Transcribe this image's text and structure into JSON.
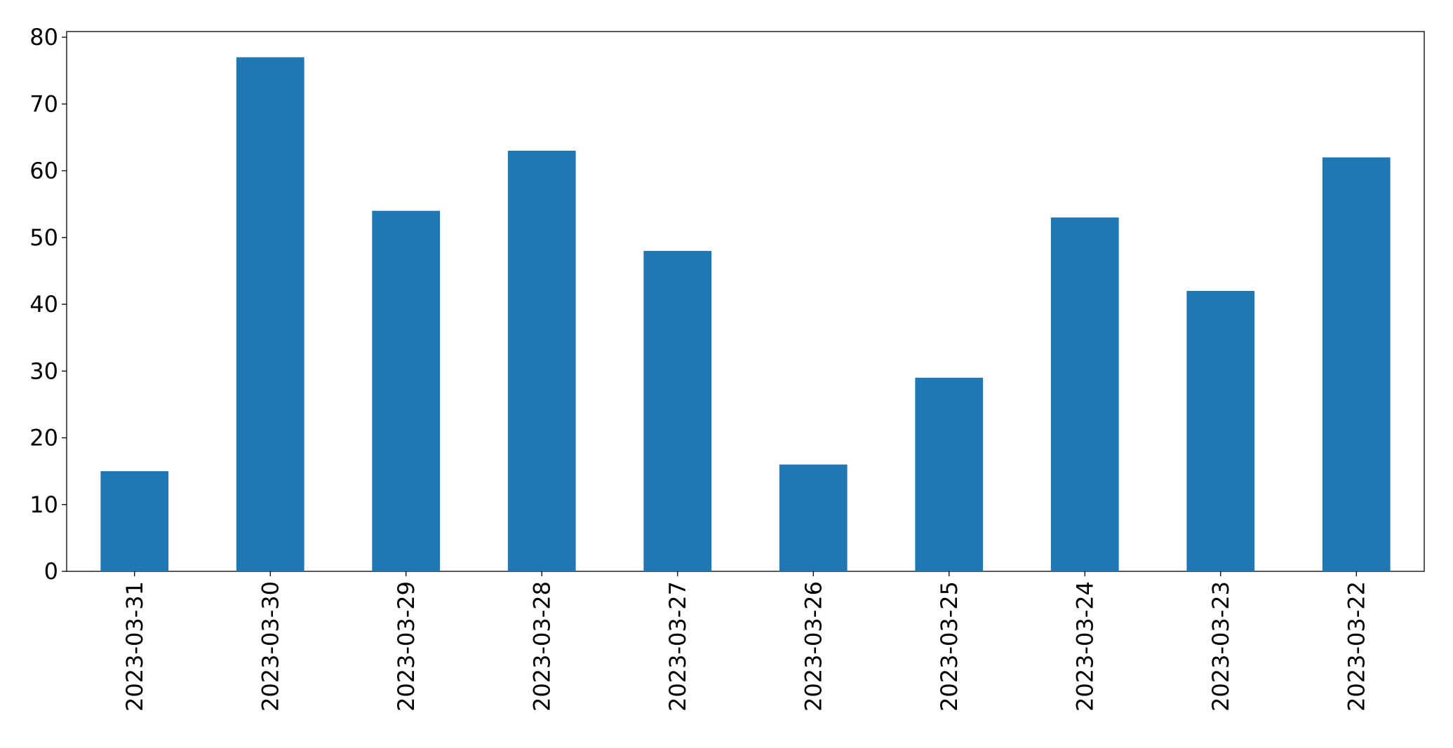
{
  "chart_data": {
    "type": "bar",
    "categories": [
      "2023-03-31",
      "2023-03-30",
      "2023-03-29",
      "2023-03-28",
      "2023-03-27",
      "2023-03-26",
      "2023-03-25",
      "2023-03-24",
      "2023-03-23",
      "2023-03-22"
    ],
    "values": [
      15,
      77,
      54,
      63,
      48,
      16,
      29,
      53,
      42,
      62
    ],
    "color": "#1f77b4",
    "ylim": [
      0,
      80.85
    ],
    "yticks": [
      0,
      10,
      20,
      30,
      40,
      50,
      60,
      70,
      80
    ],
    "grid": false
  }
}
